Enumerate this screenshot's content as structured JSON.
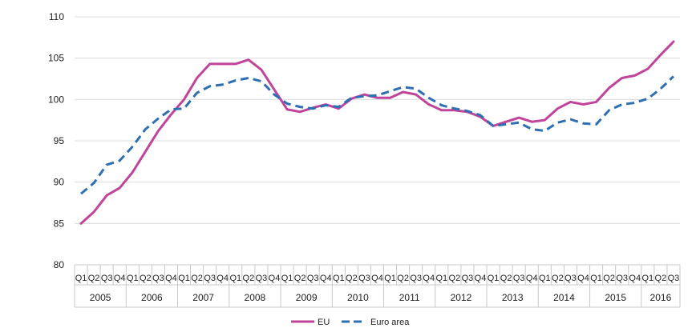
{
  "chart_data": {
    "type": "line",
    "xlabel": "",
    "ylabel": "",
    "ylim": [
      80,
      110
    ],
    "yticks": [
      80,
      85,
      90,
      95,
      100,
      105,
      110
    ],
    "grid": "horizontal",
    "legend_position": "bottom",
    "years": [
      "2005",
      "2006",
      "2007",
      "2008",
      "2009",
      "2010",
      "2011",
      "2012",
      "2013",
      "2014",
      "2015",
      "2016"
    ],
    "quarters": [
      "Q1",
      "Q2",
      "Q3",
      "Q4"
    ],
    "x": [
      "2005 Q1",
      "2005 Q2",
      "2005 Q3",
      "2005 Q4",
      "2006 Q1",
      "2006 Q2",
      "2006 Q3",
      "2006 Q4",
      "2007 Q1",
      "2007 Q2",
      "2007 Q3",
      "2007 Q4",
      "2008 Q1",
      "2008 Q2",
      "2008 Q3",
      "2008 Q4",
      "2009 Q1",
      "2009 Q2",
      "2009 Q3",
      "2009 Q4",
      "2010 Q1",
      "2010 Q2",
      "2010 Q3",
      "2010 Q4",
      "2011 Q1",
      "2011 Q2",
      "2011 Q3",
      "2011 Q4",
      "2012 Q1",
      "2012 Q2",
      "2012 Q3",
      "2012 Q4",
      "2013 Q1",
      "2013 Q2",
      "2013 Q3",
      "2013 Q4",
      "2014 Q1",
      "2014 Q2",
      "2014 Q3",
      "2014 Q4",
      "2015 Q1",
      "2015 Q2",
      "2015 Q3",
      "2015 Q4",
      "2016 Q1",
      "2016 Q2",
      "2016 Q3"
    ],
    "series": [
      {
        "name": "EU",
        "color": "#c0449a",
        "dash": "solid",
        "values": [
          85.0,
          86.4,
          88.4,
          89.3,
          91.2,
          93.7,
          96.2,
          98.2,
          100.0,
          102.6,
          104.3,
          104.3,
          104.3,
          104.8,
          103.6,
          101.2,
          98.8,
          98.5,
          99.0,
          99.4,
          98.9,
          100.1,
          100.6,
          100.2,
          100.2,
          100.9,
          100.6,
          99.4,
          98.7,
          98.7,
          98.5,
          97.9,
          96.8,
          97.3,
          97.8,
          97.3,
          97.5,
          98.9,
          99.7,
          99.4,
          99.7,
          101.4,
          102.6,
          102.9,
          103.7,
          105.4,
          107.0
        ]
      },
      {
        "name": "Euro area",
        "color": "#2e6fb4",
        "dash": "dashed",
        "values": [
          88.6,
          89.9,
          92.1,
          92.6,
          94.3,
          96.4,
          97.7,
          98.8,
          98.9,
          100.8,
          101.6,
          101.8,
          102.3,
          102.6,
          102.2,
          100.6,
          99.5,
          99.1,
          98.9,
          99.3,
          99.1,
          100.2,
          100.4,
          100.5,
          101.0,
          101.5,
          101.3,
          100.2,
          99.3,
          98.9,
          98.6,
          98.1,
          96.8,
          97.0,
          97.2,
          96.4,
          96.2,
          97.2,
          97.6,
          97.1,
          97.0,
          98.7,
          99.4,
          99.6,
          100.1,
          101.3,
          102.8
        ]
      }
    ]
  }
}
